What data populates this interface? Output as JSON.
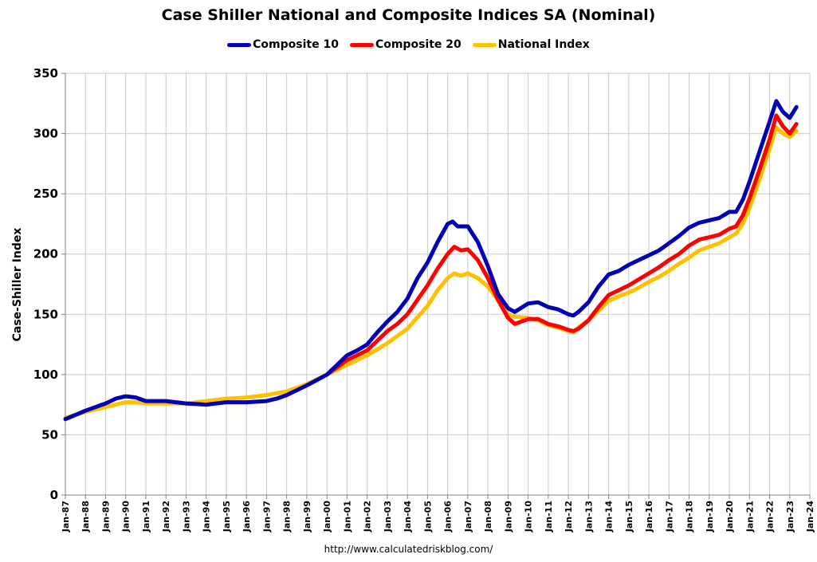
{
  "chart_data": {
    "type": "line",
    "title": "Case Shiller National and Composite Indices SA (Nominal)",
    "xlabel": "",
    "ylabel": "Case-Shiller Index",
    "source": "http://www.calculatedriskblog.com/",
    "ylim": [
      0,
      350
    ],
    "xlim": [
      "Jan-87",
      "Jan-24"
    ],
    "y_ticks": [
      0,
      50,
      100,
      150,
      200,
      250,
      300,
      350
    ],
    "x_ticks": [
      "Jan-87",
      "Jan-88",
      "Jan-89",
      "Jan-90",
      "Jan-91",
      "Jan-92",
      "Jan-93",
      "Jan-94",
      "Jan-95",
      "Jan-96",
      "Jan-97",
      "Jan-98",
      "Jan-99",
      "Jan-00",
      "Jan-01",
      "Jan-02",
      "Jan-03",
      "Jan-04",
      "Jan-05",
      "Jan-06",
      "Jan-07",
      "Jan-08",
      "Jan-09",
      "Jan-10",
      "Jan-11",
      "Jan-12",
      "Jan-13",
      "Jan-14",
      "Jan-15",
      "Jan-16",
      "Jan-17",
      "Jan-18",
      "Jan-19",
      "Jan-20",
      "Jan-21",
      "Jan-22",
      "Jan-23",
      "Jan-24"
    ],
    "grid": true,
    "legend_position": "top-center",
    "series": [
      {
        "name": "Composite 10",
        "color": "#0000b4",
        "points": [
          [
            "1987-01",
            63
          ],
          [
            "1988-01",
            70
          ],
          [
            "1989-01",
            76
          ],
          [
            "1989-07",
            80
          ],
          [
            "1990-01",
            82
          ],
          [
            "1990-07",
            81
          ],
          [
            "1991-01",
            78
          ],
          [
            "1991-07",
            78
          ],
          [
            "1992-01",
            78
          ],
          [
            "1993-01",
            76
          ],
          [
            "1994-01",
            75
          ],
          [
            "1995-01",
            77
          ],
          [
            "1996-01",
            77
          ],
          [
            "1997-01",
            78
          ],
          [
            "1997-07",
            80
          ],
          [
            "1998-01",
            83
          ],
          [
            "1999-01",
            91
          ],
          [
            "2000-01",
            100
          ],
          [
            "2001-01",
            116
          ],
          [
            "2001-07",
            120
          ],
          [
            "2002-01",
            125
          ],
          [
            "2002-07",
            135
          ],
          [
            "2003-01",
            144
          ],
          [
            "2003-07",
            152
          ],
          [
            "2004-01",
            163
          ],
          [
            "2004-07",
            180
          ],
          [
            "2005-01",
            193
          ],
          [
            "2005-07",
            210
          ],
          [
            "2006-01",
            225
          ],
          [
            "2006-04",
            227
          ],
          [
            "2006-07",
            223
          ],
          [
            "2007-01",
            223
          ],
          [
            "2007-07",
            210
          ],
          [
            "2008-01",
            190
          ],
          [
            "2008-07",
            167
          ],
          [
            "2009-01",
            155
          ],
          [
            "2009-05",
            152
          ],
          [
            "2010-01",
            159
          ],
          [
            "2010-07",
            160
          ],
          [
            "2011-01",
            156
          ],
          [
            "2011-07",
            154
          ],
          [
            "2012-01",
            150
          ],
          [
            "2012-04",
            149
          ],
          [
            "2012-07",
            152
          ],
          [
            "2013-01",
            160
          ],
          [
            "2013-07",
            173
          ],
          [
            "2014-01",
            183
          ],
          [
            "2014-07",
            186
          ],
          [
            "2015-01",
            191
          ],
          [
            "2015-07",
            195
          ],
          [
            "2016-01",
            199
          ],
          [
            "2016-07",
            203
          ],
          [
            "2017-01",
            209
          ],
          [
            "2017-07",
            215
          ],
          [
            "2018-01",
            222
          ],
          [
            "2018-07",
            226
          ],
          [
            "2019-01",
            228
          ],
          [
            "2019-07",
            230
          ],
          [
            "2020-01",
            235
          ],
          [
            "2020-05",
            235
          ],
          [
            "2020-09",
            245
          ],
          [
            "2021-01",
            260
          ],
          [
            "2021-07",
            285
          ],
          [
            "2022-01",
            310
          ],
          [
            "2022-05",
            327
          ],
          [
            "2022-09",
            318
          ],
          [
            "2023-01",
            313
          ],
          [
            "2023-05",
            322
          ]
        ]
      },
      {
        "name": "Composite 20",
        "color": "#ff0000",
        "points": [
          [
            "2000-01",
            100
          ],
          [
            "2001-01",
            112
          ],
          [
            "2001-07",
            116
          ],
          [
            "2002-01",
            120
          ],
          [
            "2002-07",
            128
          ],
          [
            "2003-01",
            136
          ],
          [
            "2003-07",
            142
          ],
          [
            "2004-01",
            150
          ],
          [
            "2004-07",
            162
          ],
          [
            "2005-01",
            174
          ],
          [
            "2005-07",
            188
          ],
          [
            "2006-01",
            200
          ],
          [
            "2006-05",
            206
          ],
          [
            "2006-09",
            203
          ],
          [
            "2007-01",
            204
          ],
          [
            "2007-07",
            195
          ],
          [
            "2008-01",
            180
          ],
          [
            "2008-07",
            162
          ],
          [
            "2009-01",
            147
          ],
          [
            "2009-05",
            142
          ],
          [
            "2010-01",
            146
          ],
          [
            "2010-07",
            146
          ],
          [
            "2011-01",
            142
          ],
          [
            "2011-07",
            140
          ],
          [
            "2012-01",
            137
          ],
          [
            "2012-04",
            136
          ],
          [
            "2012-07",
            138
          ],
          [
            "2013-01",
            145
          ],
          [
            "2013-07",
            156
          ],
          [
            "2014-01",
            166
          ],
          [
            "2014-07",
            170
          ],
          [
            "2015-01",
            174
          ],
          [
            "2015-07",
            179
          ],
          [
            "2016-01",
            184
          ],
          [
            "2016-07",
            189
          ],
          [
            "2017-01",
            195
          ],
          [
            "2017-07",
            200
          ],
          [
            "2018-01",
            207
          ],
          [
            "2018-07",
            212
          ],
          [
            "2019-01",
            214
          ],
          [
            "2019-07",
            216
          ],
          [
            "2020-01",
            221
          ],
          [
            "2020-05",
            223
          ],
          [
            "2020-09",
            232
          ],
          [
            "2021-01",
            246
          ],
          [
            "2021-07",
            270
          ],
          [
            "2022-01",
            295
          ],
          [
            "2022-05",
            315
          ],
          [
            "2022-09",
            306
          ],
          [
            "2023-01",
            300
          ],
          [
            "2023-05",
            308
          ]
        ]
      },
      {
        "name": "National Index",
        "color": "#ffc000",
        "points": [
          [
            "1987-01",
            64
          ],
          [
            "1988-01",
            69
          ],
          [
            "1989-01",
            73
          ],
          [
            "1990-01",
            77
          ],
          [
            "1990-07",
            77
          ],
          [
            "1991-01",
            76
          ],
          [
            "1992-01",
            76
          ],
          [
            "1993-01",
            76
          ],
          [
            "1994-01",
            78
          ],
          [
            "1995-01",
            80
          ],
          [
            "1996-01",
            81
          ],
          [
            "1997-01",
            83
          ],
          [
            "1998-01",
            86
          ],
          [
            "1999-01",
            92
          ],
          [
            "2000-01",
            100
          ],
          [
            "2001-01",
            108
          ],
          [
            "2002-01",
            116
          ],
          [
            "2003-01",
            126
          ],
          [
            "2004-01",
            138
          ],
          [
            "2005-01",
            157
          ],
          [
            "2005-07",
            170
          ],
          [
            "2006-01",
            180
          ],
          [
            "2006-05",
            184
          ],
          [
            "2006-09",
            182
          ],
          [
            "2007-01",
            184
          ],
          [
            "2007-07",
            180
          ],
          [
            "2008-01",
            173
          ],
          [
            "2008-07",
            162
          ],
          [
            "2009-01",
            150
          ],
          [
            "2009-05",
            148
          ],
          [
            "2010-01",
            147
          ],
          [
            "2010-07",
            145
          ],
          [
            "2011-01",
            141
          ],
          [
            "2011-07",
            139
          ],
          [
            "2012-01",
            136
          ],
          [
            "2012-04",
            135
          ],
          [
            "2012-07",
            139
          ],
          [
            "2013-01",
            145
          ],
          [
            "2013-07",
            153
          ],
          [
            "2014-01",
            161
          ],
          [
            "2014-07",
            165
          ],
          [
            "2015-01",
            168
          ],
          [
            "2015-07",
            172
          ],
          [
            "2016-01",
            177
          ],
          [
            "2016-07",
            181
          ],
          [
            "2017-01",
            186
          ],
          [
            "2017-07",
            192
          ],
          [
            "2018-01",
            197
          ],
          [
            "2018-07",
            203
          ],
          [
            "2019-01",
            206
          ],
          [
            "2019-07",
            209
          ],
          [
            "2020-01",
            214
          ],
          [
            "2020-05",
            217
          ],
          [
            "2020-09",
            225
          ],
          [
            "2021-01",
            238
          ],
          [
            "2021-07",
            262
          ],
          [
            "2022-01",
            287
          ],
          [
            "2022-05",
            305
          ],
          [
            "2022-09",
            300
          ],
          [
            "2023-01",
            297
          ],
          [
            "2023-05",
            302
          ]
        ]
      }
    ]
  }
}
